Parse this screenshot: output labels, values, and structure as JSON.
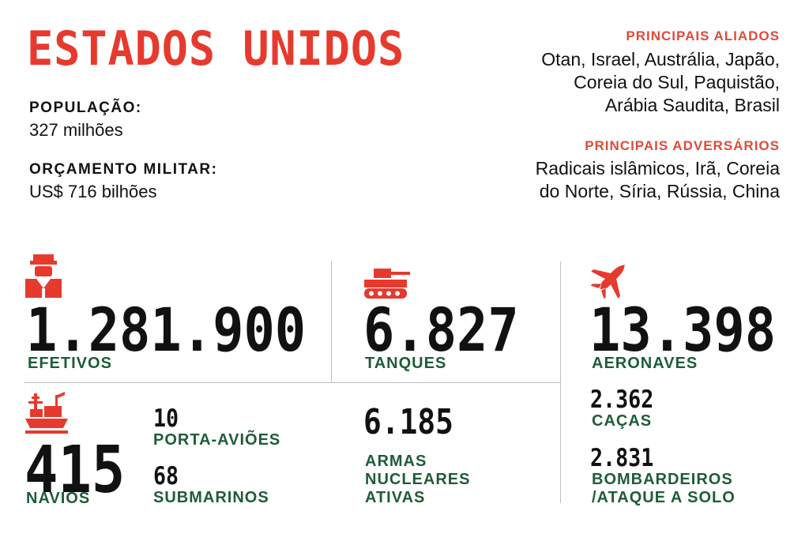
{
  "title": "ESTADOS UNIDOS",
  "populacao": {
    "label": "POPULAÇÃO:",
    "value": "327 milhões"
  },
  "orcamento": {
    "label": "ORÇAMENTO MILITAR:",
    "value": "US$ 716 bilhões"
  },
  "aliados": {
    "heading": "PRINCIPAIS ALIADOS",
    "lines": [
      "Otan, Israel, Austrália, Japão,",
      "Coreia do Sul, Paquistão,",
      "Arábia Saudita, Brasil"
    ]
  },
  "adversarios": {
    "heading": "PRINCIPAIS ADVERSÁRIOS",
    "lines": [
      "Radicais islâmicos, Irã, Coreia",
      "do Norte, Síria, Rússia, China"
    ]
  },
  "efetivos": {
    "value": "1.281.900",
    "label": "EFETIVOS",
    "icon": "soldier-icon"
  },
  "tanques": {
    "value": "6.827",
    "label": "TANQUES",
    "icon": "tank-icon"
  },
  "aeronaves": {
    "value": "13.398",
    "label": "AERONAVES",
    "icon": "jet-icon"
  },
  "navios": {
    "value": "415",
    "label": "NAVIOS",
    "icon": "ship-icon"
  },
  "porta_avioes": {
    "value": "10",
    "label": "PORTA-AVIÕES"
  },
  "submarinos": {
    "value": "68",
    "label": "SUBMARINOS"
  },
  "nucleares": {
    "value": "6.185",
    "label_lines": [
      "ARMAS",
      "NUCLEARES",
      "ATIVAS"
    ]
  },
  "cacas": {
    "value": "2.362",
    "label": "CAÇAS"
  },
  "bombardeiros": {
    "value": "2.831",
    "label_lines": [
      "BOMBARDEIROS",
      "/ATAQUE A SOLO"
    ]
  },
  "colors": {
    "red": "#e63a2e",
    "green": "#1e5c38",
    "divider": "#b9c2c7"
  }
}
